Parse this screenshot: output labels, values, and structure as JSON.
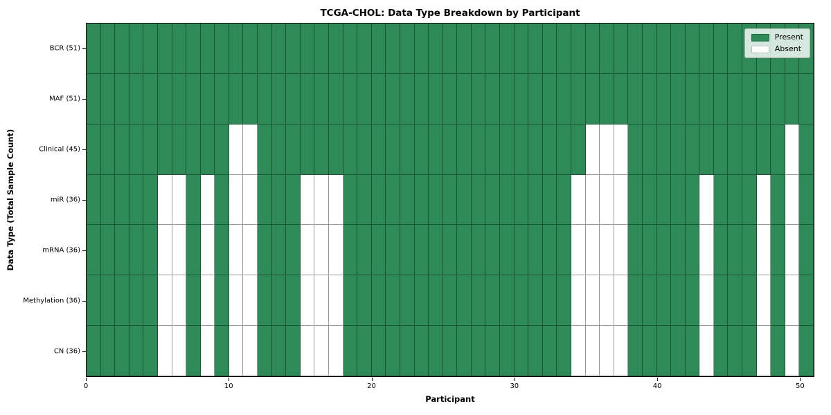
{
  "chart_data": {
    "type": "heatmap",
    "title": "TCGA-CHOL: Data Type Breakdown by Participant",
    "xlabel": "Participant",
    "ylabel": "Data Type (Total Sample Count)",
    "n_participants": 51,
    "x_ticks": [
      0,
      10,
      20,
      30,
      40,
      50
    ],
    "xlim": [
      0,
      51
    ],
    "grid": true,
    "rows": [
      {
        "label": "BCR (51)",
        "data_type": "BCR",
        "present_count": 51,
        "absent_participants": []
      },
      {
        "label": "MAF (51)",
        "data_type": "MAF",
        "present_count": 51,
        "absent_participants": []
      },
      {
        "label": "Clinical (45)",
        "data_type": "Clinical",
        "present_count": 45,
        "absent_participants": [
          10,
          11,
          35,
          36,
          37,
          49
        ]
      },
      {
        "label": "miR (36)",
        "data_type": "miR",
        "present_count": 36,
        "absent_participants": [
          5,
          6,
          8,
          10,
          11,
          15,
          16,
          17,
          34,
          35,
          36,
          37,
          43,
          47,
          49
        ]
      },
      {
        "label": "mRNA (36)",
        "data_type": "mRNA",
        "present_count": 36,
        "absent_participants": [
          5,
          6,
          8,
          10,
          11,
          15,
          16,
          17,
          34,
          35,
          36,
          37,
          43,
          47,
          49
        ]
      },
      {
        "label": "Methylation (36)",
        "data_type": "Methylation",
        "present_count": 36,
        "absent_participants": [
          5,
          6,
          8,
          10,
          11,
          15,
          16,
          17,
          34,
          35,
          36,
          37,
          43,
          47,
          49
        ]
      },
      {
        "label": "CN (36)",
        "data_type": "CN",
        "present_count": 36,
        "absent_participants": [
          5,
          6,
          8,
          10,
          11,
          15,
          16,
          17,
          34,
          35,
          36,
          37,
          43,
          47,
          49
        ]
      }
    ],
    "legend": {
      "position": "upper right",
      "items": [
        {
          "label": "Present",
          "color": "#2E8B57"
        },
        {
          "label": "Absent",
          "color": "#FFFFFF"
        }
      ]
    },
    "colors": {
      "present": "#2E8B57",
      "absent": "#FFFFFF",
      "cell_edge": "rgba(0,0,0,0.40)"
    }
  }
}
